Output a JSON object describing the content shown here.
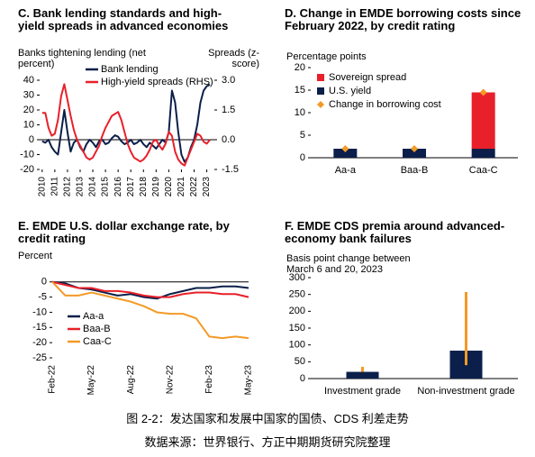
{
  "chart_data": [
    {
      "type": "line",
      "title": "C. Bank lending standards and high-yield spreads in advanced economies",
      "ylabel": "Banks tightening lending (net percent)",
      "y2label": "Spreads (z-score)",
      "xlim": [
        2009.8,
        2023.6
      ],
      "xticks": [
        2010,
        2011,
        2012,
        2013,
        2014,
        2015,
        2016,
        2017,
        2018,
        2019,
        2020,
        2021,
        2022,
        2023
      ],
      "ylim": [
        -20,
        40
      ],
      "yticks": [
        -20,
        -10,
        0,
        10,
        20,
        30,
        40
      ],
      "y2lim": [
        -1.5,
        3.0
      ],
      "y2ticks": [
        {
          "value": 3,
          "label": "3.0"
        },
        1.5,
        {
          "value": 0,
          "label": "0.0"
        },
        -1.5
      ],
      "x": [
        2010,
        2010.25,
        2010.5,
        2010.75,
        2011,
        2011.25,
        2011.5,
        2011.75,
        2012,
        2012.25,
        2012.5,
        2012.75,
        2013,
        2013.25,
        2013.5,
        2013.75,
        2014,
        2014.25,
        2014.5,
        2014.75,
        2015,
        2015.25,
        2015.5,
        2015.75,
        2016,
        2016.25,
        2016.5,
        2016.75,
        2017,
        2017.25,
        2017.5,
        2017.75,
        2018,
        2018.25,
        2018.5,
        2018.75,
        2019,
        2019.25,
        2019.5,
        2019.75,
        2020,
        2020.25,
        2020.5,
        2020.75,
        2021,
        2021.25,
        2021.5,
        2021.75,
        2022,
        2022.25,
        2022.5,
        2022.75,
        2023,
        2023.25
      ],
      "series": [
        {
          "name": "Bank lending",
          "color": "#0b1f4a",
          "values": [
            -1,
            -2,
            0,
            -5,
            -8,
            -10,
            5,
            20,
            5,
            -8,
            -2,
            0,
            -5,
            -8,
            -3,
            0,
            -2,
            -5,
            -1,
            0,
            -3,
            -2,
            1,
            3,
            2,
            -1,
            -3,
            -2,
            0,
            -3,
            -2,
            0,
            -3,
            -5,
            -2,
            -4,
            -6,
            -3,
            0,
            -2,
            5,
            33,
            25,
            5,
            -10,
            -15,
            -12,
            -5,
            0,
            10,
            25,
            33,
            36,
            37
          ]
        },
        {
          "name": "High-yield spreads (RHS)",
          "color": "#e8202a",
          "axis": "y2",
          "values": [
            1.35,
            1.35,
            0.6,
            0.2,
            0.3,
            1.0,
            2.2,
            2.8,
            2.0,
            1.2,
            0.5,
            0.0,
            -0.3,
            -0.6,
            -0.9,
            -1.0,
            -0.9,
            -0.6,
            -0.3,
            0.2,
            0.6,
            0.9,
            1.2,
            1.3,
            1.4,
            1.0,
            0.4,
            -0.2,
            -0.6,
            -0.9,
            -1.0,
            -1.1,
            -1.0,
            -0.8,
            -0.5,
            -0.1,
            0.0,
            -0.3,
            -0.5,
            -0.2,
            0.4,
            0.2,
            -0.6,
            -1.0,
            -1.2,
            -1.3,
            -0.9,
            -0.5,
            -0.1,
            0.3,
            0.2,
            -0.1,
            -0.2,
            0.0
          ]
        }
      ]
    },
    {
      "type": "bar",
      "title": "D. Change in EMDE borrowing costs since February 2022, by credit rating",
      "ylabel": "Percentage points",
      "ylim": [
        0,
        20
      ],
      "yticks": [
        0,
        5,
        10,
        15,
        20
      ],
      "categories": [
        "Aa-a",
        "Baa-B",
        "Caa-C"
      ],
      "series": [
        {
          "name": "Sovereign spread",
          "color": "#e8202a",
          "type": "bar",
          "values": [
            0,
            0,
            12.5
          ]
        },
        {
          "name": "U.S. yield",
          "color": "#0b1f4a",
          "type": "bar",
          "values": [
            2,
            2,
            2
          ]
        },
        {
          "name": "Change in borrowing cost",
          "color": "#f39a26",
          "type": "marker",
          "values": [
            2,
            2,
            14.5
          ]
        }
      ]
    },
    {
      "type": "line",
      "title": "E. EMDE U.S. dollar exchange rate, by credit rating",
      "ylabel": "Percent",
      "ylim": [
        -25,
        2
      ],
      "yticks": [
        0,
        -5,
        -10,
        -15,
        -20,
        -25
      ],
      "categories": [
        "Feb-22",
        null,
        null,
        "May-22",
        null,
        null,
        "Aug-22",
        null,
        null,
        "Nov-22",
        null,
        null,
        "Feb-23",
        null,
        null,
        "May-23"
      ],
      "series": [
        {
          "name": "Aa-a",
          "color": "#0b1f4a",
          "values": [
            0,
            -0.5,
            -2,
            -2.5,
            -3.5,
            -4.5,
            -4,
            -5,
            -5.5,
            -4,
            -3,
            -2,
            -2,
            -1.5,
            -1.5,
            -2
          ]
        },
        {
          "name": "Baa-B",
          "color": "#e8202a",
          "values": [
            0,
            -1,
            -2,
            -2,
            -3,
            -3,
            -3.5,
            -4.5,
            -5,
            -5,
            -4,
            -3.5,
            -3.5,
            -4,
            -4,
            -5
          ]
        },
        {
          "name": "Caa-C",
          "color": "#f39a26",
          "values": [
            0,
            -4.5,
            -4.5,
            -3.5,
            -4.5,
            -5.5,
            -6.5,
            -8,
            -10,
            -10.5,
            -10.5,
            -12,
            -18,
            -18.5,
            -18,
            -18.5
          ]
        }
      ]
    },
    {
      "type": "bar",
      "title": "F. EMDE CDS premia around advanced-economy bank failures",
      "ylabel": "Basis point change between March 6 and 20, 2023",
      "ylim": [
        0,
        300
      ],
      "yticks": [
        0,
        50,
        100,
        150,
        200,
        250,
        300
      ],
      "categories": [
        "Investment grade",
        "Non-investment grade"
      ],
      "values": [
        20,
        83
      ],
      "color": "#0b1f4a",
      "range_low": [
        20,
        40
      ],
      "range_high": [
        35,
        257
      ],
      "range_color": "#f39a26"
    }
  ],
  "caption": {
    "figure": "图 2-2：发达国家和发展中国家的国债、CDS 利差走势",
    "source": "数据来源：世界银行、方正中期期货研究院整理"
  }
}
